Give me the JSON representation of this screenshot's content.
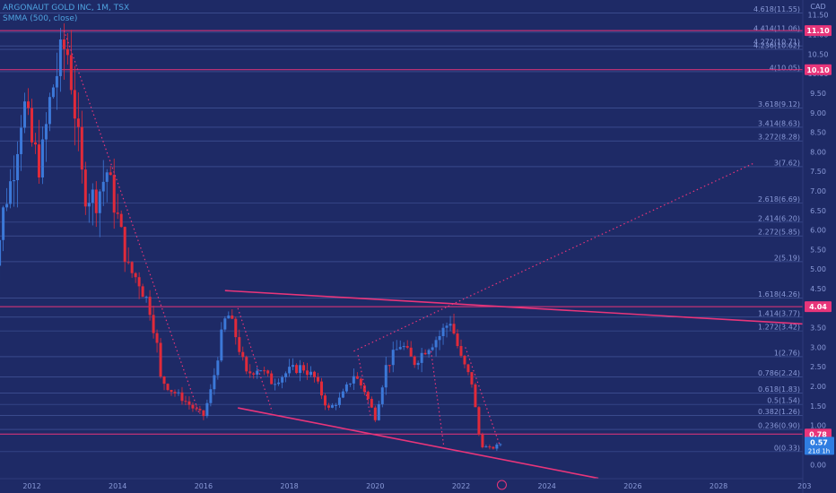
{
  "header": {
    "symbol_line": "ARGONAUT GOLD INC, 1M, TSX",
    "indicator_line": "SMMA (500, close)"
  },
  "colors": {
    "background": "#1e2a66",
    "up": "#3c78d8",
    "down": "#e02a3a",
    "magenta": "#e8357a",
    "fib": "#5a6fb8",
    "axis_text": "#8a9ad8"
  },
  "chart_data": {
    "type": "candlestick",
    "currency_label": "CAD",
    "x_tick_labels": [
      "2012",
      "2014",
      "2016",
      "2018",
      "2020",
      "2022",
      "2024",
      "2026",
      "2028",
      "203"
    ],
    "x_range": [
      2011.0,
      2030.4
    ],
    "y_range": [
      -0.2,
      11.7
    ],
    "y_ticks": [
      0.0,
      0.5,
      1.0,
      1.5,
      2.0,
      2.5,
      3.0,
      3.5,
      4.0,
      4.5,
      5.0,
      5.5,
      6.0,
      6.5,
      7.0,
      7.5,
      8.0,
      8.5,
      9.0,
      9.5,
      10.0,
      10.5,
      11.0,
      11.5
    ],
    "y_tick_labels": [
      "0.00",
      "0.50",
      "1.00",
      "1.50",
      "2.00",
      "2.50",
      "3.00",
      "3.50",
      "4.00",
      "4.50",
      "5.00",
      "5.50",
      "6.00",
      "6.50",
      "7.00",
      "7.50",
      "8.00",
      "8.50",
      "9.00",
      "9.50",
      "10.00",
      "10.50",
      "11.00",
      "11.50"
    ],
    "fib_levels": [
      {
        "label": "0(0.33)",
        "value": 0.33
      },
      {
        "label": "0.236(0.90)",
        "value": 0.9
      },
      {
        "label": "0.382(1.26)",
        "value": 1.26
      },
      {
        "label": "0.5(1.54)",
        "value": 1.54
      },
      {
        "label": "0.618(1.83)",
        "value": 1.83
      },
      {
        "label": "0.786(2.24)",
        "value": 2.24
      },
      {
        "label": "1(2.76)",
        "value": 2.76
      },
      {
        "label": "1.272(3.42)",
        "value": 3.42
      },
      {
        "label": "1.414(3.77)",
        "value": 3.77
      },
      {
        "label": "1.618(4.26)",
        "value": 4.26
      },
      {
        "label": "2(5.19)",
        "value": 5.19
      },
      {
        "label": "2.272(5.85)",
        "value": 5.85
      },
      {
        "label": "2.414(6.20)",
        "value": 6.2
      },
      {
        "label": "2.618(6.69)",
        "value": 6.69
      },
      {
        "label": "3(7.62)",
        "value": 7.62
      },
      {
        "label": "3.272(8.28)",
        "value": 8.28
      },
      {
        "label": "3.414(8.63)",
        "value": 8.63
      },
      {
        "label": "3.618(9.12)",
        "value": 9.12
      },
      {
        "label": "4(10.05)",
        "value": 10.05
      },
      {
        "label": "4.272(10.71)",
        "value": 10.71
      },
      {
        "label": "4.414(11.06)",
        "value": 11.06
      },
      {
        "label": "4.618(11.55)",
        "value": 11.55
      },
      {
        "label": "4.236(10.62)",
        "value": 10.62
      }
    ],
    "horizontal_levels": [
      {
        "label": "11.10",
        "value": 11.1
      },
      {
        "label": "10.10",
        "value": 10.1
      },
      {
        "label": "4.04",
        "value": 4.04
      },
      {
        "label": "0.78",
        "value": 0.78
      }
    ],
    "last_price": {
      "label": "0.57",
      "countdown": "21d 1h",
      "value": 0.57
    },
    "trendlines": [
      {
        "style": "solid",
        "x1": 2016.5,
        "y1": 4.45,
        "x2": 2030.4,
        "y2": 3.57
      },
      {
        "style": "solid",
        "x1": 2016.8,
        "y1": 1.45,
        "x2": 2025.2,
        "y2": -0.35
      },
      {
        "style": "dotted",
        "x1": 2012.75,
        "y1": 11.1,
        "x2": 2015.9,
        "y2": 1.3
      },
      {
        "style": "dotted",
        "x1": 2021.7,
        "y1": 4.05,
        "x2": 2028.8,
        "y2": 7.7
      },
      {
        "style": "dotted",
        "x1": 2019.5,
        "y1": 2.9,
        "x2": 2021.7,
        "y2": 4.05
      },
      {
        "style": "dotted",
        "x1": 2016.8,
        "y1": 4.0,
        "x2": 2017.6,
        "y2": 1.35
      },
      {
        "style": "dotted",
        "x1": 2019.6,
        "y1": 2.8,
        "x2": 2019.9,
        "y2": 1.2
      },
      {
        "style": "dotted",
        "x1": 2021.3,
        "y1": 2.9,
        "x2": 2021.6,
        "y2": 0.45
      },
      {
        "style": "dotted",
        "x1": 2022.1,
        "y1": 3.0,
        "x2": 2022.9,
        "y2": 0.5
      }
    ],
    "anchors": [
      {
        "x": 2011.0,
        "v": 5.0
      },
      {
        "x": 2011.2,
        "v": 5.4
      },
      {
        "x": 2011.35,
        "v": 6.6
      },
      {
        "x": 2011.55,
        "v": 7.4
      },
      {
        "x": 2011.8,
        "v": 9.3
      },
      {
        "x": 2012.0,
        "v": 8.2
      },
      {
        "x": 2012.2,
        "v": 7.6
      },
      {
        "x": 2012.45,
        "v": 9.5
      },
      {
        "x": 2012.65,
        "v": 10.3
      },
      {
        "x": 2012.8,
        "v": 10.8
      },
      {
        "x": 2012.95,
        "v": 9.6
      },
      {
        "x": 2013.2,
        "v": 7.0
      },
      {
        "x": 2013.5,
        "v": 6.8
      },
      {
        "x": 2013.75,
        "v": 7.5
      },
      {
        "x": 2014.0,
        "v": 6.3
      },
      {
        "x": 2014.25,
        "v": 5.0
      },
      {
        "x": 2014.5,
        "v": 4.7
      },
      {
        "x": 2014.75,
        "v": 4.0
      },
      {
        "x": 2014.9,
        "v": 3.2
      },
      {
        "x": 2015.0,
        "v": 2.2
      },
      {
        "x": 2015.25,
        "v": 1.9
      },
      {
        "x": 2015.5,
        "v": 1.7
      },
      {
        "x": 2015.75,
        "v": 1.45
      },
      {
        "x": 2016.0,
        "v": 1.25
      },
      {
        "x": 2016.2,
        "v": 2.0
      },
      {
        "x": 2016.4,
        "v": 3.2
      },
      {
        "x": 2016.55,
        "v": 3.9
      },
      {
        "x": 2016.75,
        "v": 3.3
      },
      {
        "x": 2017.0,
        "v": 2.3
      },
      {
        "x": 2017.3,
        "v": 2.5
      },
      {
        "x": 2017.6,
        "v": 2.1
      },
      {
        "x": 2018.0,
        "v": 2.4
      },
      {
        "x": 2018.3,
        "v": 2.5
      },
      {
        "x": 2018.6,
        "v": 2.2
      },
      {
        "x": 2018.9,
        "v": 1.4
      },
      {
        "x": 2019.2,
        "v": 1.7
      },
      {
        "x": 2019.5,
        "v": 2.3
      },
      {
        "x": 2019.75,
        "v": 1.9
      },
      {
        "x": 2020.0,
        "v": 1.2
      },
      {
        "x": 2020.25,
        "v": 2.5
      },
      {
        "x": 2020.6,
        "v": 3.1
      },
      {
        "x": 2020.9,
        "v": 2.6
      },
      {
        "x": 2021.2,
        "v": 3.0
      },
      {
        "x": 2021.5,
        "v": 3.3
      },
      {
        "x": 2021.75,
        "v": 3.7
      },
      {
        "x": 2022.0,
        "v": 2.7
      },
      {
        "x": 2022.25,
        "v": 2.1
      },
      {
        "x": 2022.45,
        "v": 0.5
      },
      {
        "x": 2022.7,
        "v": 0.4
      },
      {
        "x": 2022.95,
        "v": 0.55
      }
    ],
    "candle_count": 144
  }
}
